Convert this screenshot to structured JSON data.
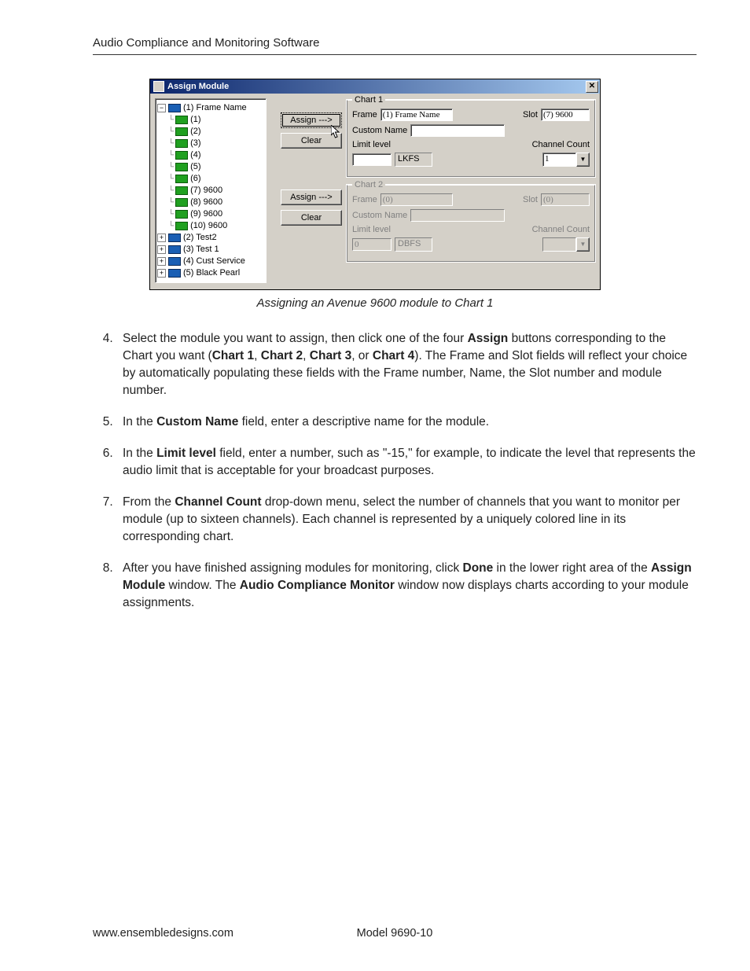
{
  "header": {
    "title": "Audio Compliance and Monitoring Software"
  },
  "screenshot": {
    "window_title": "Assign Module",
    "close_glyph": "✕",
    "titlebar_gradient": [
      "#0a246a",
      "#a6caf0"
    ],
    "bg_color": "#d4d0c8",
    "tree": {
      "root": "(1) Frame Name",
      "children": [
        "(1)",
        "(2)",
        "(3)",
        "(4)",
        "(5)",
        "(6)",
        "(7) 9600",
        "(8) 9600",
        "(9) 9600",
        "(10) 9600"
      ],
      "siblings": [
        "(2) Test2",
        "(3) Test 1",
        "(4) Cust Service",
        "(5) Black Pearl"
      ]
    },
    "buttons": {
      "assign": "Assign --->",
      "clear": "Clear"
    },
    "chart1": {
      "legend": "Chart 1",
      "frame_label": "Frame",
      "frame_value": "(1) Frame Name",
      "slot_label": "Slot",
      "slot_value": "(7) 9600",
      "custom_name_label": "Custom Name",
      "custom_name_value": "",
      "limit_label": "Limit level",
      "limit_value": "",
      "limit_unit": "LKFS",
      "count_label": "Channel Count",
      "count_value": "1"
    },
    "chart2": {
      "legend": "Chart 2",
      "frame_label": "Frame",
      "frame_value": "(0)",
      "slot_label": "Slot",
      "slot_value": "(0)",
      "custom_name_label": "Custom Name",
      "custom_name_value": "",
      "limit_label": "Limit level",
      "limit_value": "0",
      "limit_unit": "DBFS",
      "count_label": "Channel Count",
      "count_value": ""
    }
  },
  "caption": "Assigning an Avenue 9600 module to Chart 1",
  "steps": {
    "s4_a": "Select the module you want to assign, then click one of the four ",
    "s4_b1": "Assign",
    "s4_c": " buttons corresponding to the Chart you want (",
    "s4_b2": "Chart 1",
    "s4_d": ", ",
    "s4_b3": "Chart 2",
    "s4_b4": "Chart 3",
    "s4_e": ", or ",
    "s4_b5": "Chart 4",
    "s4_f": "). The Frame and Slot fields will reflect your choice by automatically populating these fields with the Frame number, Name, the Slot number and module number.",
    "s5_a": "In the ",
    "s5_b1": "Custom Name",
    "s5_c": " field, enter a descriptive name for the module.",
    "s6_a": "In the ",
    "s6_b1": "Limit level",
    "s6_c": " field, enter a number, such as \"-15,\" for example, to indicate the level that represents the audio limit that is acceptable for your broadcast purposes.",
    "s7_a": "From the ",
    "s7_b1": "Channel Count",
    "s7_c": " drop-down menu, select the number of channels that you want to monitor per module (up to sixteen channels). Each channel is represented by a uniquely colored line in its corresponding chart.",
    "s8_a": "After you have finished assigning modules for monitoring, click ",
    "s8_b1": "Done",
    "s8_c": " in the lower right area of the ",
    "s8_b2": "Assign Module",
    "s8_d": " window. The ",
    "s8_b3": "Audio Compliance Monitor",
    "s8_e": " window now displays charts according to your module assignments."
  },
  "footer": {
    "url": "www.ensembledesigns.com",
    "model": "Model 9690-10"
  }
}
